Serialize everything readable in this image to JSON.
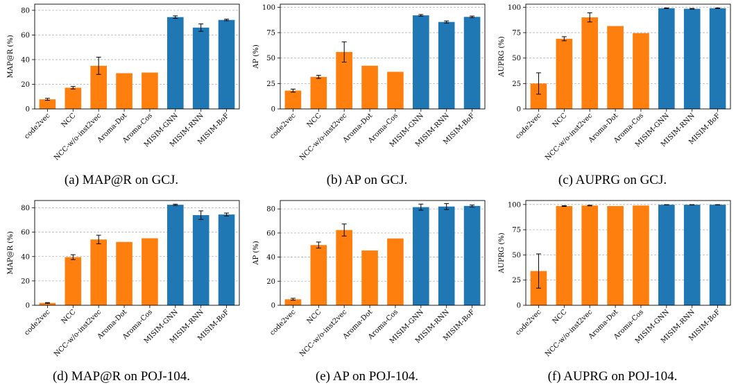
{
  "colors": {
    "baseline": "#ff7f0e",
    "misim": "#1f77b4"
  },
  "chart_data": [
    {
      "type": "bar",
      "caption": "(a) MAP@R on GCJ.",
      "ylabel": "MAP@R (%)",
      "ylim": [
        0,
        85
      ],
      "yticks": [
        0,
        20,
        40,
        60,
        80
      ],
      "categories": [
        "code2vec",
        "NCC",
        "NCC-w/o-inst2vec",
        "Aroma-Dot",
        "Aroma-Cos",
        "MISIM-GNN",
        "MISIM-RNN",
        "MISIM-BoF"
      ],
      "values": [
        7.8,
        17.2,
        35.0,
        29.0,
        29.5,
        74.5,
        66.0,
        72.2
      ],
      "errors": [
        0.8,
        1.0,
        7.0,
        0,
        0,
        1.0,
        3.0,
        0.6
      ],
      "grid": "y-dashed"
    },
    {
      "type": "bar",
      "caption": "(b) AP on GCJ.",
      "ylabel": "AP (%)",
      "ylim": [
        0,
        103
      ],
      "yticks": [
        0,
        25,
        50,
        75,
        100
      ],
      "categories": [
        "code2vec",
        "NCC",
        "NCC-w/o-inst2vec",
        "Aroma-Dot",
        "Aroma-Cos",
        "MISIM-GNN",
        "MISIM-RNN",
        "MISIM-BoF"
      ],
      "values": [
        18.0,
        31.5,
        56.0,
        42.5,
        36.5,
        92.0,
        85.5,
        90.5
      ],
      "errors": [
        1.5,
        1.5,
        10.0,
        0,
        0,
        0.8,
        1.0,
        0.8
      ],
      "grid": "y-dashed"
    },
    {
      "type": "bar",
      "caption": "(c) AUPRG on GCJ.",
      "ylabel": "AUPRG (%)",
      "ylim": [
        0,
        103
      ],
      "yticks": [
        0,
        25,
        50,
        75,
        100
      ],
      "categories": [
        "code2vec",
        "NCC",
        "NCC-w/o-inst2vec",
        "Aroma-Dot",
        "Aroma-Cos",
        "MISIM-GNN",
        "MISIM-RNN",
        "MISIM-BoF"
      ],
      "values": [
        25.0,
        69.0,
        90.0,
        81.5,
        74.5,
        99.0,
        98.5,
        99.0
      ],
      "errors": [
        10.5,
        2.0,
        4.5,
        0,
        0,
        0.3,
        0.3,
        0.3
      ],
      "grid": "y-dashed"
    },
    {
      "type": "bar",
      "caption": "(d) MAP@R on POJ-104.",
      "ylabel": "MAP@R (%)",
      "ylim": [
        0,
        86
      ],
      "yticks": [
        0,
        20,
        40,
        60,
        80
      ],
      "categories": [
        "code2vec",
        "NCC",
        "NCC-w/o-inst2vec",
        "Aroma-Dot",
        "Aroma-Cos",
        "MISIM-GNN",
        "MISIM-RNN",
        "MISIM-BoF"
      ],
      "values": [
        1.9,
        39.5,
        54.0,
        52.0,
        55.0,
        82.5,
        74.0,
        74.5
      ],
      "errors": [
        0.3,
        2.0,
        3.5,
        0,
        0,
        0.5,
        3.5,
        1.2
      ],
      "grid": "y-dashed"
    },
    {
      "type": "bar",
      "caption": "(e) AP on POJ-104.",
      "ylabel": "AP (%)",
      "ylim": [
        0,
        87
      ],
      "yticks": [
        0,
        20,
        40,
        60,
        80
      ],
      "categories": [
        "code2vec",
        "NCC",
        "NCC-w/o-inst2vec",
        "Aroma-Dot",
        "Aroma-Cos",
        "MISIM-GNN",
        "MISIM-RNN",
        "MISIM-BoF"
      ],
      "values": [
        5.0,
        50.0,
        62.5,
        45.5,
        55.5,
        81.5,
        82.0,
        82.5
      ],
      "errors": [
        0.8,
        2.5,
        5.0,
        0,
        0,
        2.5,
        2.5,
        0.8
      ],
      "grid": "y-dashed"
    },
    {
      "type": "bar",
      "caption": "(f) AUPRG on POJ-104.",
      "ylabel": "AUPRG (%)",
      "ylim": [
        0,
        104
      ],
      "yticks": [
        0,
        25,
        50,
        75,
        100
      ],
      "categories": [
        "code2vec",
        "NCC",
        "NCC-w/o-inst2vec",
        "Aroma-Dot",
        "Aroma-Cos",
        "MISIM-GNN",
        "MISIM-RNN",
        "MISIM-BoF"
      ],
      "values": [
        34.0,
        98.5,
        99.0,
        98.5,
        99.0,
        99.8,
        99.8,
        99.8
      ],
      "errors": [
        17.0,
        0.4,
        0.3,
        0,
        0,
        0.1,
        0.1,
        0.1
      ],
      "grid": "y-dashed"
    }
  ]
}
